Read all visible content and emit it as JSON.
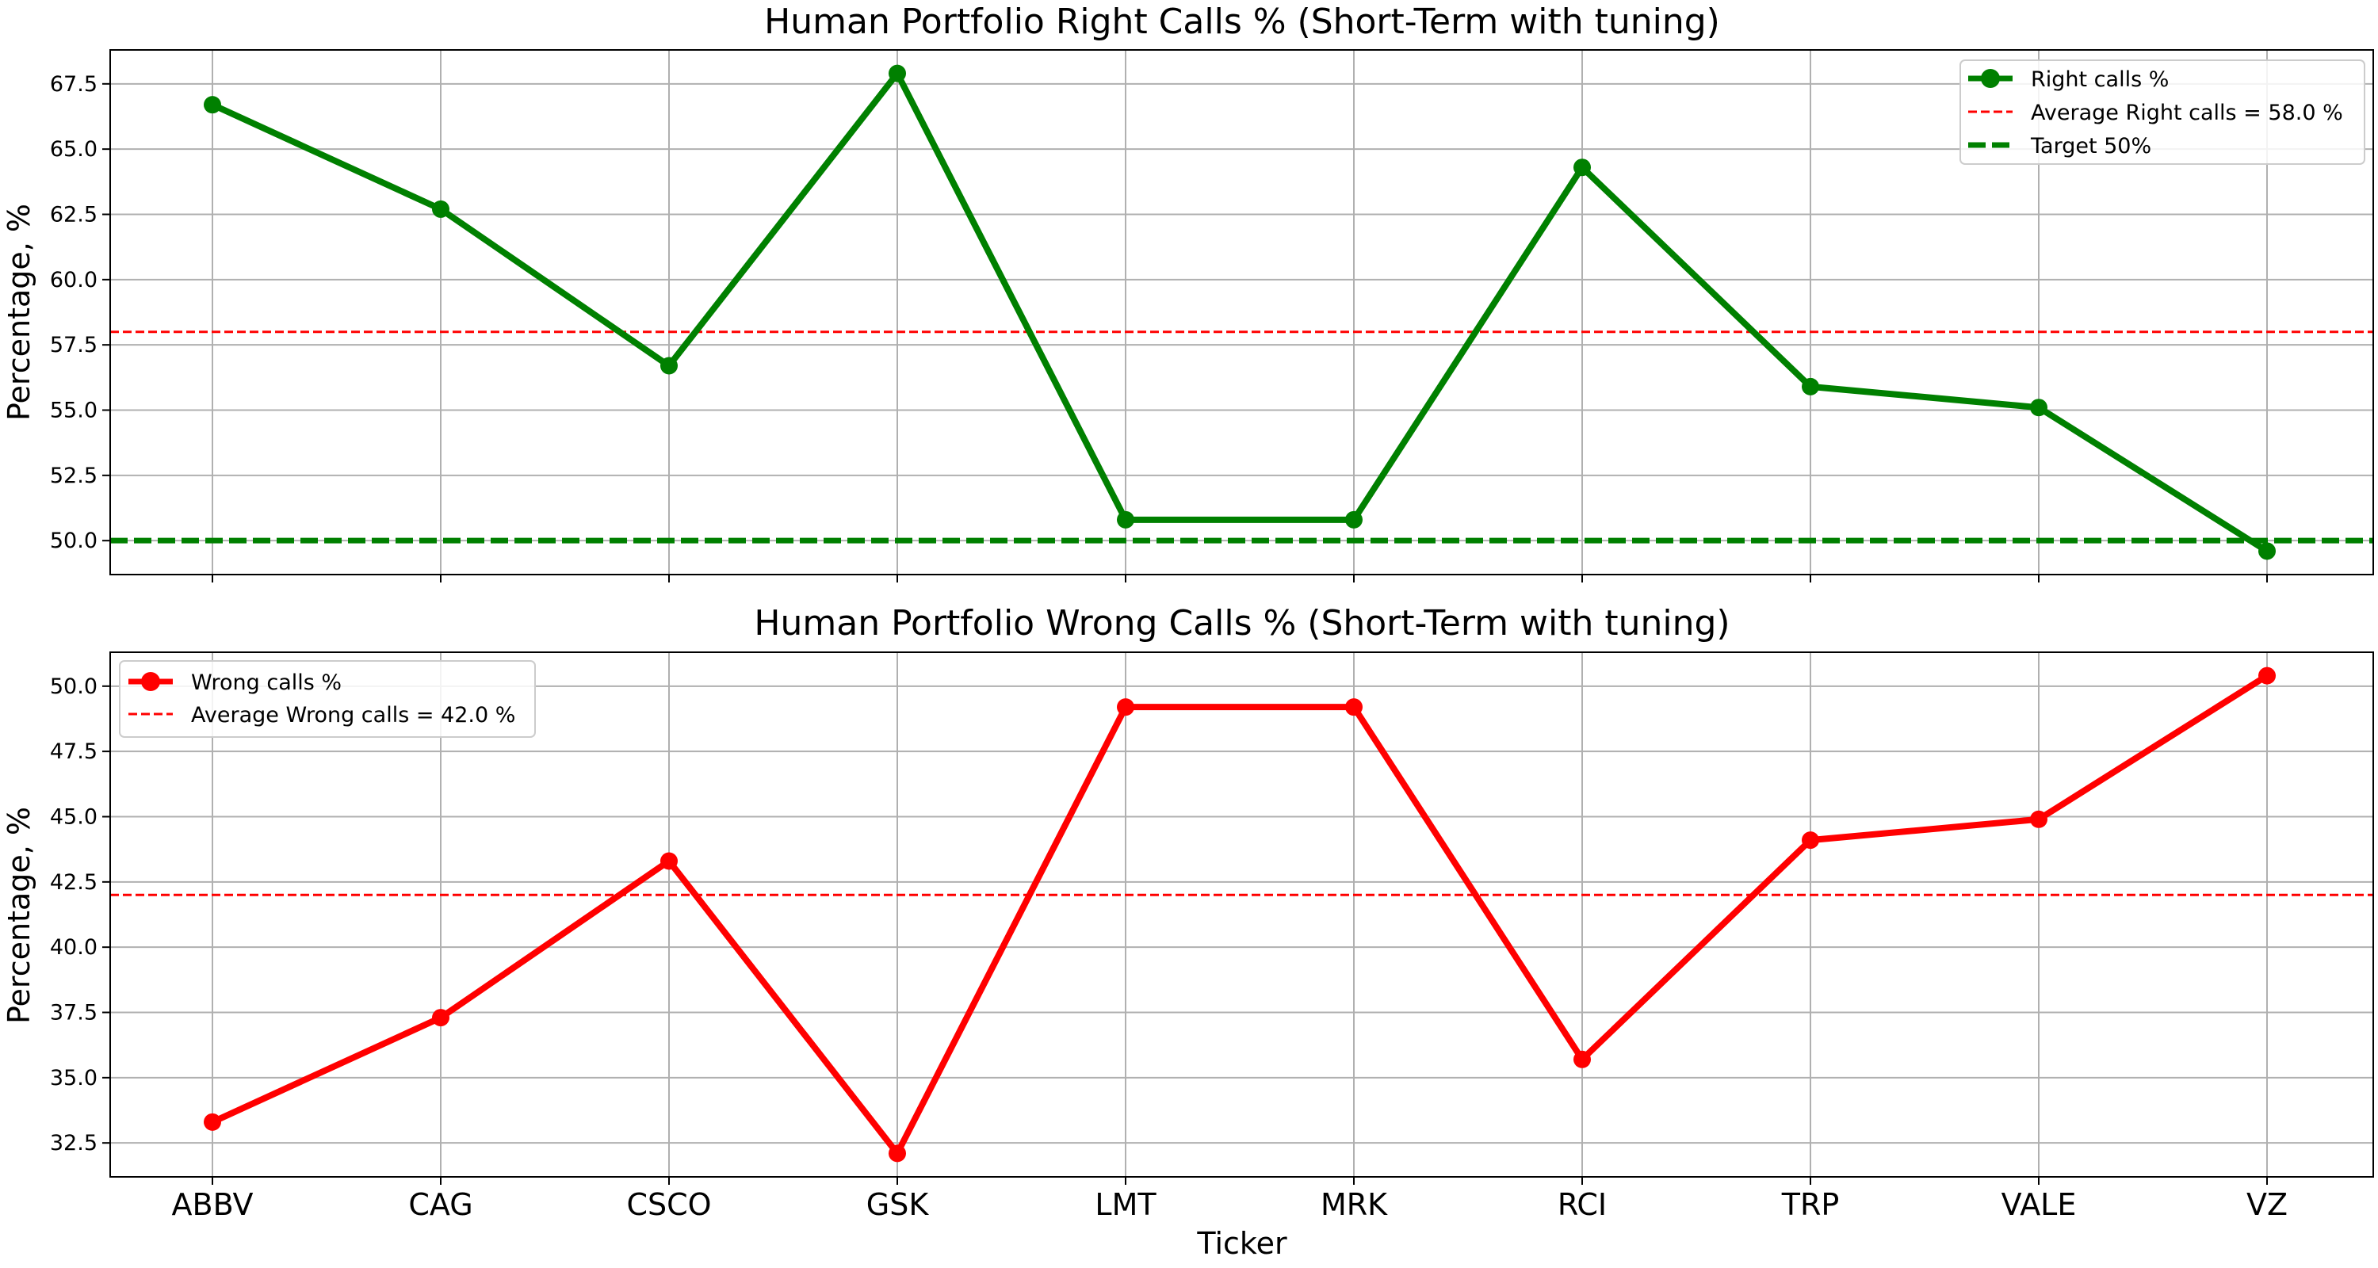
{
  "chart_data": [
    {
      "type": "line",
      "title": "Human Portfolio Right Calls % (Short-Term with tuning)",
      "xlabel": "",
      "ylabel": "Percentage, %",
      "categories": [
        "ABBV",
        "CAG",
        "CSCO",
        "GSK",
        "LMT",
        "MRK",
        "RCI",
        "TRP",
        "VALE",
        "VZ"
      ],
      "ylim": [
        48.7,
        68.8
      ],
      "yticks": [
        50.0,
        52.5,
        55.0,
        57.5,
        60.0,
        62.5,
        65.0,
        67.5
      ],
      "ytick_labels": [
        "50.0",
        "52.5",
        "55.0",
        "57.5",
        "60.0",
        "62.5",
        "65.0",
        "67.5"
      ],
      "grid": true,
      "legend_position": "top-right",
      "series": [
        {
          "name": "Right calls %",
          "values": [
            66.7,
            62.7,
            56.7,
            67.9,
            50.8,
            50.8,
            64.3,
            55.9,
            55.1,
            49.6
          ],
          "color": "#008000",
          "marker": "circle"
        }
      ],
      "reference_lines": [
        {
          "label": "Average Right calls = 58.0 %",
          "y": 58.0,
          "color": "#ff0000",
          "style": "dashed"
        },
        {
          "label": "Target 50%",
          "y": 50.0,
          "color": "#008000",
          "style": "dashed-thick"
        }
      ]
    },
    {
      "type": "line",
      "title": "Human Portfolio Wrong Calls % (Short-Term with tuning)",
      "xlabel": "Ticker",
      "ylabel": "Percentage, %",
      "categories": [
        "ABBV",
        "CAG",
        "CSCO",
        "GSK",
        "LMT",
        "MRK",
        "RCI",
        "TRP",
        "VALE",
        "VZ"
      ],
      "ylim": [
        31.2,
        51.3
      ],
      "yticks": [
        32.5,
        35.0,
        37.5,
        40.0,
        42.5,
        45.0,
        47.5,
        50.0
      ],
      "ytick_labels": [
        "32.5",
        "35.0",
        "37.5",
        "40.0",
        "42.5",
        "45.0",
        "47.5",
        "50.0"
      ],
      "grid": true,
      "legend_position": "top-left",
      "series": [
        {
          "name": "Wrong calls %",
          "values": [
            33.3,
            37.3,
            43.3,
            32.1,
            49.2,
            49.2,
            35.7,
            44.1,
            44.9,
            50.4
          ],
          "color": "#ff0000",
          "marker": "circle"
        }
      ],
      "reference_lines": [
        {
          "label": "Average Wrong calls = 42.0 %",
          "y": 42.0,
          "color": "#ff0000",
          "style": "dashed"
        }
      ]
    }
  ]
}
